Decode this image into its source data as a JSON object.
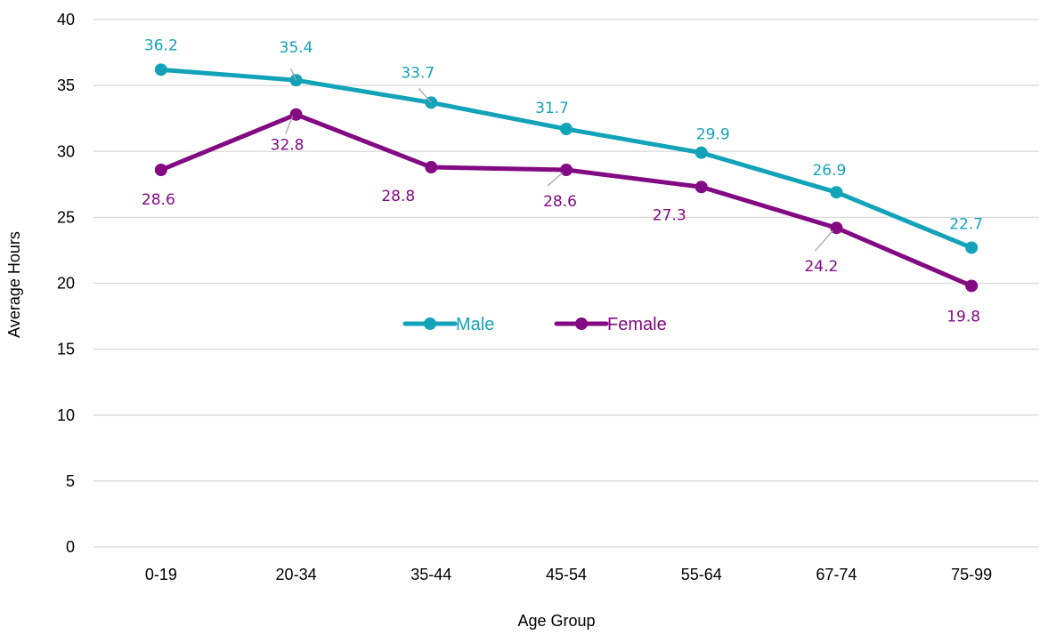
{
  "chart_data": {
    "type": "line",
    "title": "",
    "xlabel": "Age Group",
    "ylabel": "Average  Hours",
    "categories": [
      "0-19",
      "20-34",
      "35-44",
      "45-54",
      "55-64",
      "67-74",
      "75-99"
    ],
    "ylim": [
      0,
      40
    ],
    "yticks": [
      0,
      5,
      10,
      15,
      20,
      25,
      30,
      35,
      40
    ],
    "grid": true,
    "legend_position": "center",
    "series": [
      {
        "name": "Male",
        "color": "#13a3b9",
        "values": [
          36.2,
          35.4,
          33.7,
          31.7,
          29.9,
          26.9,
          22.7
        ],
        "labels": [
          "36.2",
          "35.4",
          "33.7",
          "31.7",
          "29.9",
          "26.9",
          "22.7"
        ]
      },
      {
        "name": "Female",
        "color": "#820a82",
        "values": [
          28.6,
          32.8,
          28.8,
          28.6,
          27.3,
          24.2,
          19.8
        ],
        "labels": [
          "28.6",
          "32.8",
          "28.8",
          "28.6",
          "27.3",
          "24.2",
          "19.8"
        ]
      }
    ]
  }
}
